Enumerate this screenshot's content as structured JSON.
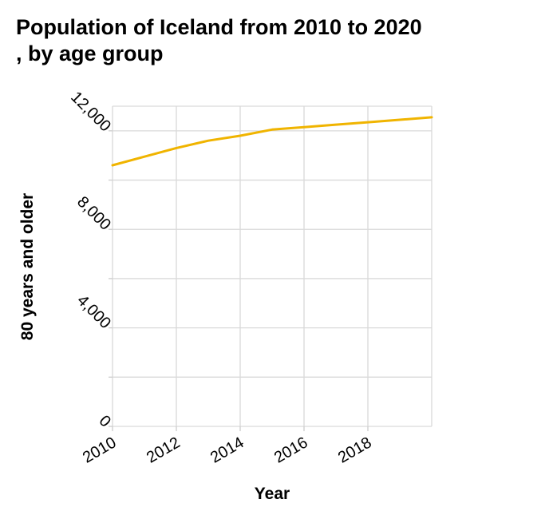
{
  "chart_data": {
    "type": "line",
    "title_line1": "Population of Iceland from 2010 to 2020",
    "title_line2": ", by age group",
    "xlabel": "Year",
    "ylabel": "80 years and older",
    "xlim": [
      2010,
      2020
    ],
    "ylim": [
      0,
      13000
    ],
    "x_ticks": [
      2010,
      2012,
      2014,
      2016,
      2018
    ],
    "x_tick_labels": [
      "2010",
      "2012",
      "2014",
      "2016",
      "2018"
    ],
    "y_ticks": [
      0,
      4000,
      8000,
      12000
    ],
    "y_tick_labels": [
      "0",
      "4,000",
      "8,000",
      "12,000"
    ],
    "y_grid": [
      0,
      2000,
      4000,
      6000,
      8000,
      10000,
      12000
    ],
    "x_grid": [
      2012,
      2014,
      2016,
      2018
    ],
    "grid": true,
    "series": [
      {
        "color": "#f0b400",
        "x": [
          2010,
          2011,
          2012,
          2013,
          2014,
          2015,
          2016,
          2017,
          2018,
          2019,
          2020
        ],
        "values": [
          10600,
          10950,
          11300,
          11600,
          11800,
          12050,
          12150,
          12250,
          12350,
          12450,
          12550
        ]
      }
    ]
  }
}
